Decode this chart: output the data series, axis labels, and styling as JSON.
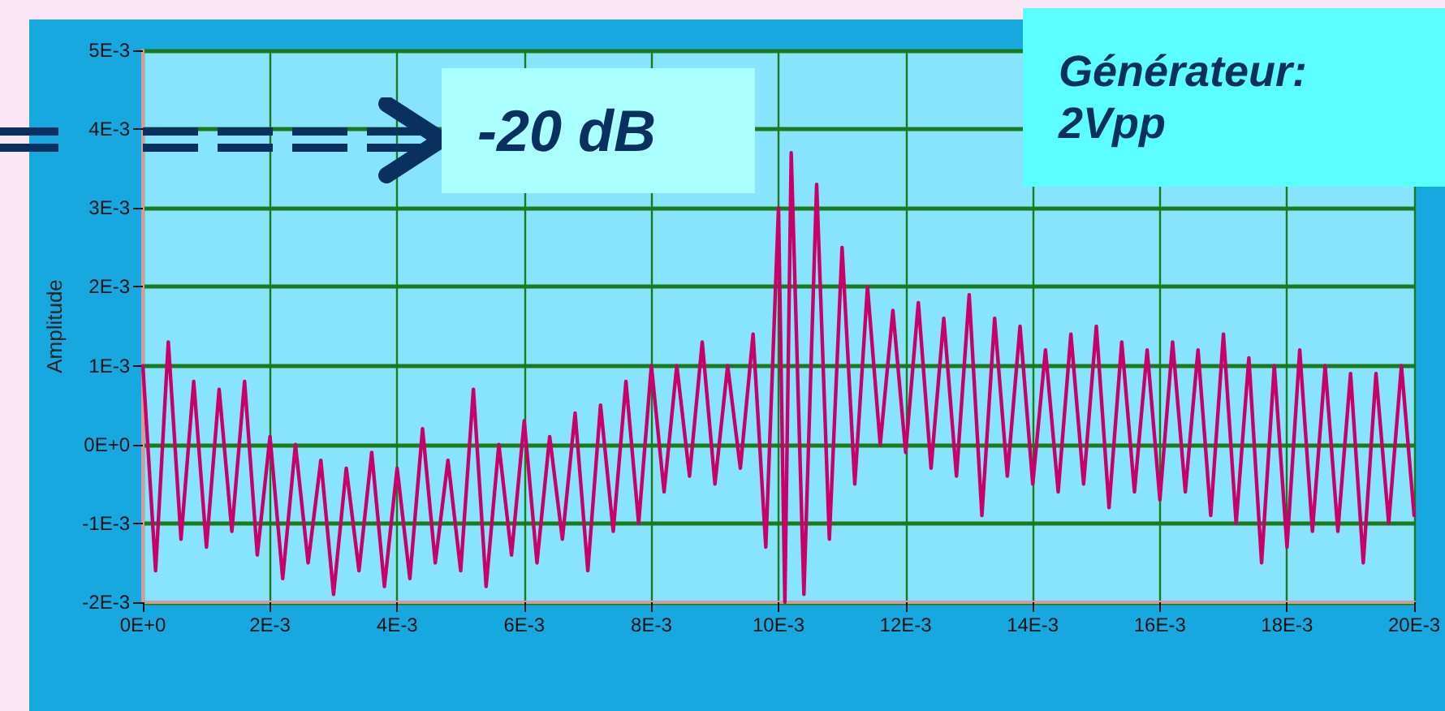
{
  "chart_data": {
    "type": "line",
    "ylabel": "Amplitude",
    "annotations": [
      "-20 dB",
      "Générateur:\n2Vpp"
    ],
    "xlim": [
      0,
      0.02
    ],
    "ylim": [
      -0.002,
      0.005
    ],
    "xticks": [
      {
        "value": 0,
        "label": "0E+0"
      },
      {
        "value": 0.002,
        "label": "2E-3"
      },
      {
        "value": 0.004,
        "label": "4E-3"
      },
      {
        "value": 0.006,
        "label": "6E-3"
      },
      {
        "value": 0.008,
        "label": "8E-3"
      },
      {
        "value": 0.01,
        "label": "10E-3"
      },
      {
        "value": 0.012,
        "label": "12E-3"
      },
      {
        "value": 0.014,
        "label": "14E-3"
      },
      {
        "value": 0.016,
        "label": "16E-3"
      },
      {
        "value": 0.018,
        "label": "18E-3"
      },
      {
        "value": 0.02,
        "label": "20E-3"
      }
    ],
    "yticks": [
      {
        "value": -0.002,
        "label": "-2E-3"
      },
      {
        "value": -0.001,
        "label": "-1E-3"
      },
      {
        "value": 0,
        "label": "0E+0"
      },
      {
        "value": 0.001,
        "label": "1E-3"
      },
      {
        "value": 0.002,
        "label": "2E-3"
      },
      {
        "value": 0.003,
        "label": "3E-3"
      },
      {
        "value": 0.004,
        "label": "4E-3"
      },
      {
        "value": 0.005,
        "label": "5E-3"
      }
    ],
    "grid": true,
    "marker": "none",
    "line_style": "solid",
    "series": [
      {
        "color": "#c8006a",
        "x": [
          0,
          0.0002,
          0.0004,
          0.0006,
          0.0008,
          0.001,
          0.0012,
          0.0014,
          0.0016,
          0.0018,
          0.002,
          0.0022,
          0.0024,
          0.0026,
          0.0028,
          0.003,
          0.0032,
          0.0034,
          0.0036,
          0.0038,
          0.004,
          0.0042,
          0.0044,
          0.0046,
          0.0048,
          0.005,
          0.0052,
          0.0054,
          0.0056,
          0.0058,
          0.006,
          0.0062,
          0.0064,
          0.0066,
          0.0068,
          0.007,
          0.0072,
          0.0074,
          0.0076,
          0.0078,
          0.008,
          0.0082,
          0.0084,
          0.0086,
          0.0088,
          0.009,
          0.0092,
          0.0094,
          0.0096,
          0.0098,
          0.01,
          0.0101,
          0.0102,
          0.0104,
          0.0106,
          0.0108,
          0.011,
          0.0112,
          0.0114,
          0.0116,
          0.0118,
          0.012,
          0.0122,
          0.0124,
          0.0126,
          0.0128,
          0.013,
          0.0132,
          0.0134,
          0.0136,
          0.0138,
          0.014,
          0.0142,
          0.0144,
          0.0146,
          0.0148,
          0.015,
          0.0152,
          0.0154,
          0.0156,
          0.0158,
          0.016,
          0.0162,
          0.0164,
          0.0166,
          0.0168,
          0.017,
          0.0172,
          0.0174,
          0.0176,
          0.0178,
          0.018,
          0.0182,
          0.0184,
          0.0186,
          0.0188,
          0.019,
          0.0192,
          0.0194,
          0.0196,
          0.0198,
          0.02
        ],
        "values": [
          0.001,
          -0.0016,
          0.0013,
          -0.0012,
          0.0008,
          -0.0013,
          0.0007,
          -0.0011,
          0.0008,
          -0.0014,
          0.0001,
          -0.0017,
          0,
          -0.0015,
          -0.0002,
          -0.0019,
          -0.0003,
          -0.0016,
          -0.0001,
          -0.0018,
          -0.0003,
          -0.0017,
          0.0002,
          -0.0015,
          -0.0002,
          -0.0016,
          0.0007,
          -0.0018,
          0,
          -0.0014,
          0.0003,
          -0.0015,
          0.0001,
          -0.0012,
          0.0004,
          -0.0016,
          0.0005,
          -0.0011,
          0.0008,
          -0.001,
          0.001,
          -0.0006,
          0.001,
          -0.0004,
          0.0013,
          -0.0005,
          0.001,
          -0.0003,
          0.0014,
          -0.0013,
          0.003,
          -0.002,
          0.0037,
          -0.0019,
          0.0033,
          -0.0012,
          0.0025,
          -0.0005,
          0.002,
          0,
          0.0017,
          -0.0001,
          0.0018,
          -0.0003,
          0.0016,
          -0.0004,
          0.0019,
          -0.0009,
          0.0016,
          -0.0004,
          0.0015,
          -0.0005,
          0.0012,
          -0.0006,
          0.0014,
          -0.0005,
          0.0015,
          -0.0008,
          0.0013,
          -0.0006,
          0.0012,
          -0.0007,
          0.0013,
          -0.0006,
          0.0012,
          -0.0009,
          0.0014,
          -0.001,
          0.0011,
          -0.0015,
          0.001,
          -0.0013,
          0.0012,
          -0.0011,
          0.001,
          -0.0011,
          0.0009,
          -0.0015,
          0.0009,
          -0.001,
          0.001,
          -0.0009
        ]
      }
    ]
  }
}
